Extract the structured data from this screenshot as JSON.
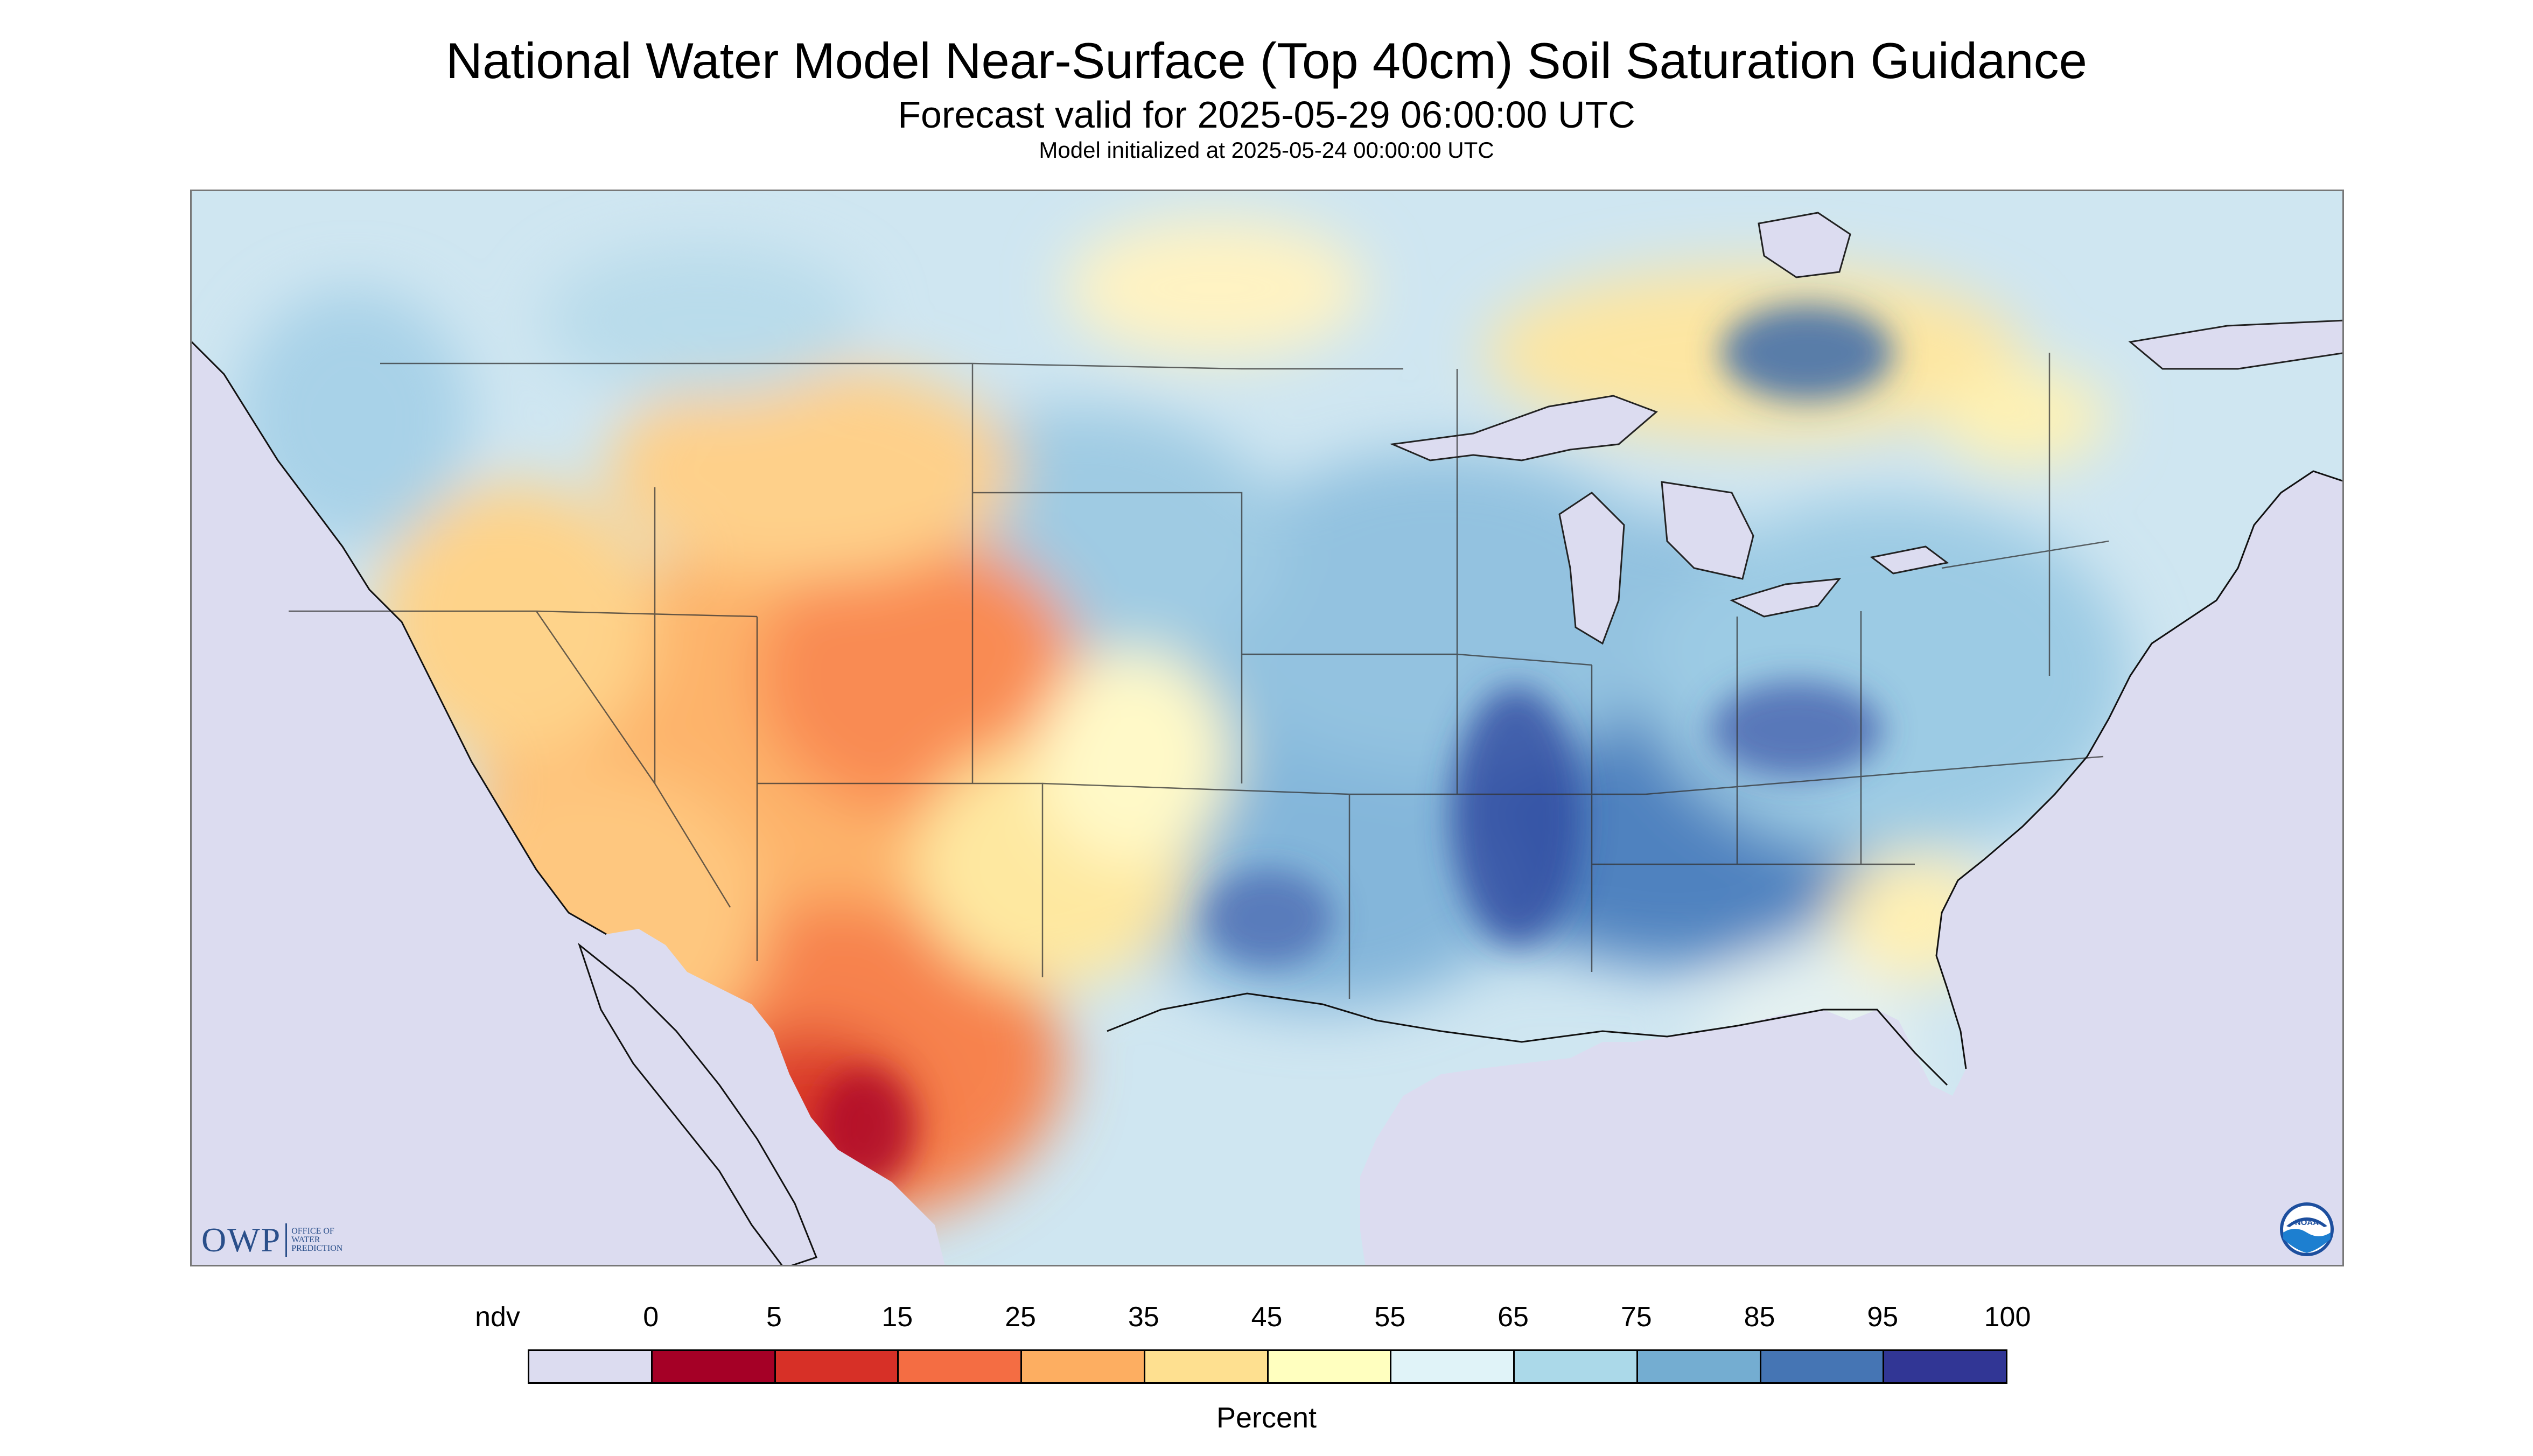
{
  "title": "National Water Model Near-Surface (Top 40cm) Soil Saturation Guidance",
  "subtitle": "Forecast valid for 2025-05-29 06:00:00 UTC",
  "subtitle2": "Model initialized at 2025-05-24 00:00:00 UTC",
  "logo_left": {
    "text": "OWP",
    "sub": [
      "OFFICE OF",
      "WATER",
      "PREDICTION"
    ]
  },
  "logo_right": {
    "icon": "noaa-logo-icon",
    "text": "NOAA"
  },
  "legend": {
    "units": "Percent",
    "labels": [
      "ndv",
      "0",
      "5",
      "15",
      "25",
      "35",
      "45",
      "55",
      "65",
      "75",
      "85",
      "95",
      "100"
    ],
    "colors": [
      "#dcdcf0",
      "#a50026",
      "#d73027",
      "#f46d43",
      "#fdae61",
      "#fee090",
      "#ffffbf",
      "#e0f3f8",
      "#abd9e9",
      "#74add1",
      "#4575b4",
      "#313695"
    ]
  },
  "map": {
    "no_data_color": "#dcdcf0",
    "state_line_color": "#333333"
  }
}
